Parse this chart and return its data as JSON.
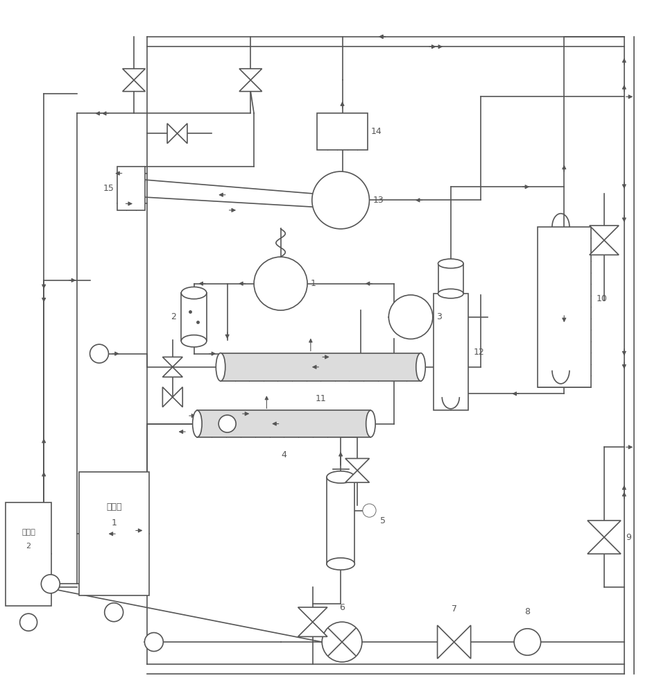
{
  "bg_color": "#ffffff",
  "line_color": "#555555",
  "line_width": 1.2,
  "thin_line": 0.6
}
